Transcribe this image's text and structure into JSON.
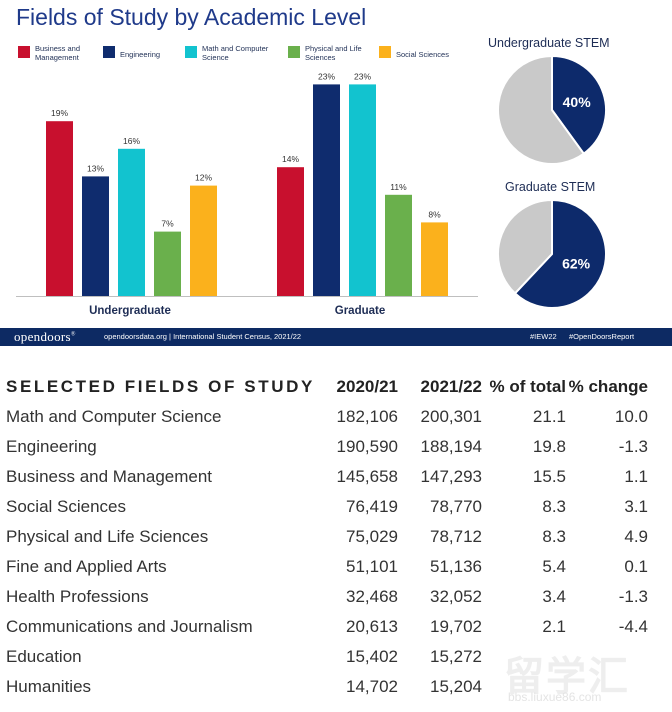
{
  "chart_data": [
    {
      "type": "bar",
      "title": "Fields of Study by Academic Level",
      "categories": [
        "Undergraduate",
        "Graduate"
      ],
      "series": [
        {
          "name": "Business and Management",
          "values": [
            19,
            14
          ],
          "color": "#c8102e"
        },
        {
          "name": "Engineering",
          "values": [
            13,
            23
          ],
          "color": "#0f2c6e"
        },
        {
          "name": "Math and Computer Science",
          "values": [
            16,
            23
          ],
          "color": "#12c3cf"
        },
        {
          "name": "Physical and Life Sciences",
          "values": [
            7,
            11
          ],
          "color": "#6ab04c"
        },
        {
          "name": "Social Sciences",
          "values": [
            12,
            8
          ],
          "color": "#fbb11c"
        }
      ],
      "value_labels": [
        [
          "19%",
          "14%"
        ],
        [
          "13%",
          "23%"
        ],
        [
          "16%",
          "23%"
        ],
        [
          "7%",
          "11%"
        ],
        [
          "12%",
          "8%"
        ]
      ],
      "ylim": [
        0,
        25
      ],
      "grid": false,
      "legend": "top"
    },
    {
      "type": "pie",
      "title": "Undergraduate STEM",
      "labels": [
        "STEM",
        "Other"
      ],
      "values": [
        40,
        60
      ],
      "value_label": "40%",
      "colors": [
        "#0d2a6b",
        "#c9c9c9"
      ]
    },
    {
      "type": "pie",
      "title": "Graduate STEM",
      "labels": [
        "STEM",
        "Other"
      ],
      "values": [
        62,
        38
      ],
      "value_label": "62%",
      "colors": [
        "#0d2a6b",
        "#c9c9c9"
      ]
    }
  ],
  "footer": {
    "brand": "opendoors",
    "brand_mark": "®",
    "site": "opendoorsdata.org  |  International Student Census, 2021/22",
    "tag1": "#IEW22",
    "tag2": "#OpenDoorsReport"
  },
  "table": {
    "headers": [
      "SELECTED FIELDS OF STUDY",
      "2020/21",
      "2021/22",
      "% of total",
      "% change"
    ],
    "rows": [
      [
        "Math and Computer Science",
        "182,106",
        "200,301",
        "21.1",
        "10.0"
      ],
      [
        "Engineering",
        "190,590",
        "188,194",
        "19.8",
        "-1.3"
      ],
      [
        "Business and Management",
        "145,658",
        "147,293",
        "15.5",
        "1.1"
      ],
      [
        "Social Sciences",
        "76,419",
        "78,770",
        "8.3",
        "3.1"
      ],
      [
        "Physical and Life Sciences",
        "75,029",
        "78,712",
        "8.3",
        "4.9"
      ],
      [
        "Fine and Applied Arts",
        "51,101",
        "51,136",
        "5.4",
        "0.1"
      ],
      [
        "Health Professions",
        "32,468",
        "32,052",
        "3.4",
        "-1.3"
      ],
      [
        "Communications and Journalism",
        "20,613",
        "19,702",
        "2.1",
        "-4.4"
      ],
      [
        "Education",
        "15,402",
        "15,272",
        "",
        ""
      ],
      [
        "Humanities",
        "14,702",
        "15,204",
        "",
        ""
      ]
    ]
  },
  "watermark": {
    "text": "留学汇",
    "url": "bbs.liuxue86.com"
  }
}
